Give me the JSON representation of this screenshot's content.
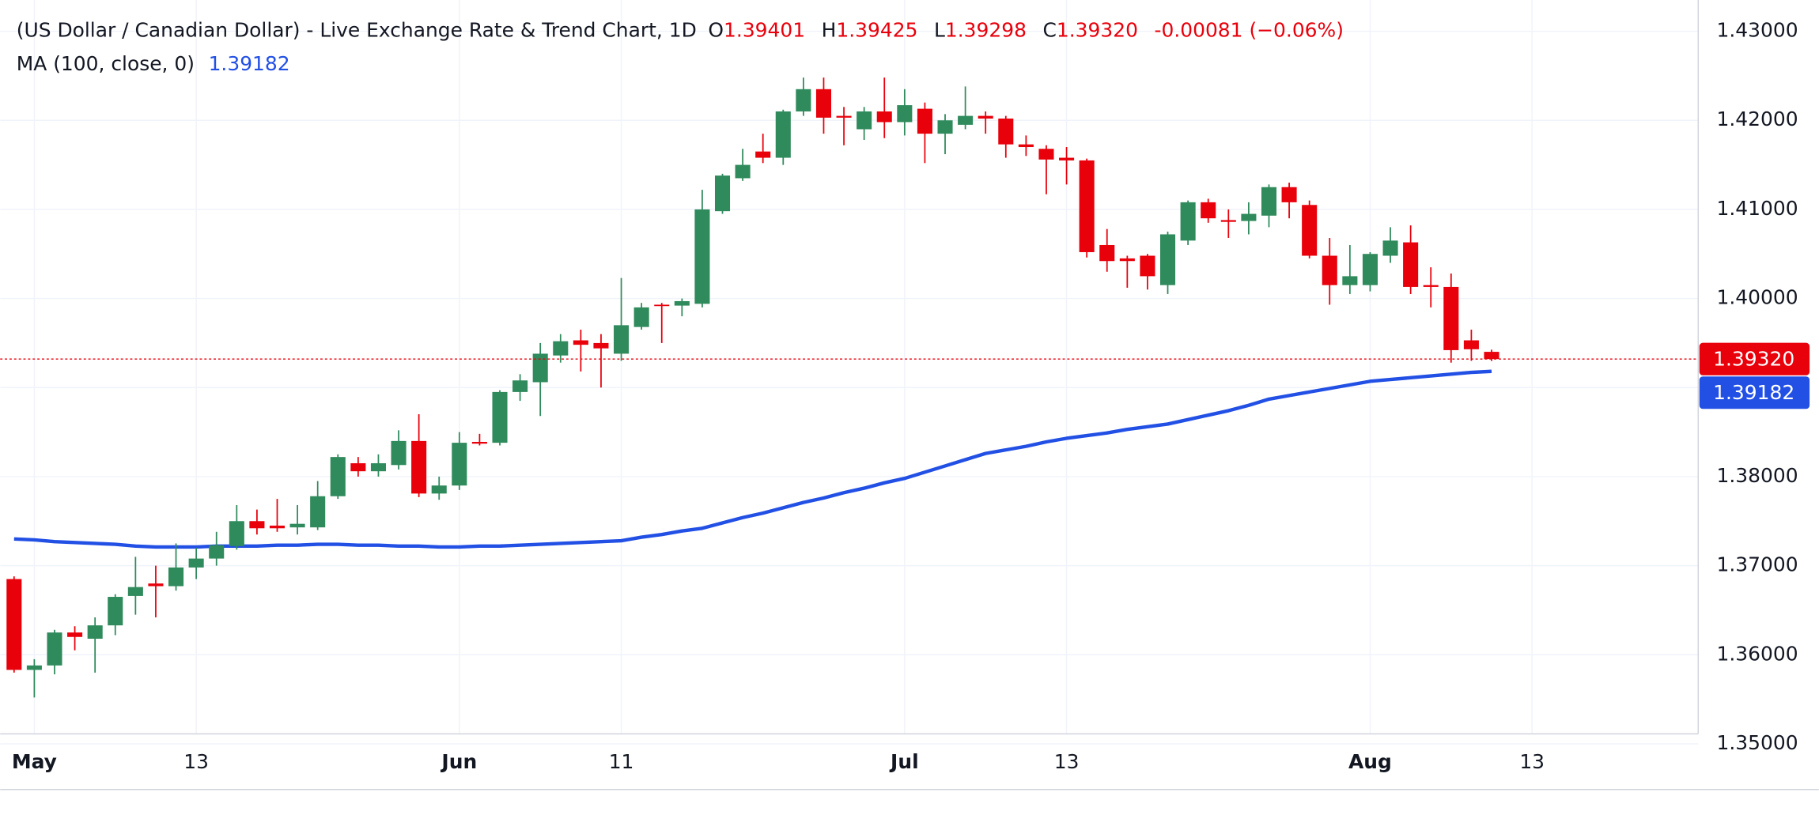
{
  "chart_data": {
    "type": "candlestick",
    "legend": {
      "title": "(US Dollar / Canadian Dollar) - Live Exchange Rate & Trend Chart, 1D",
      "open_prefix": "O",
      "open": "1.39401",
      "high_prefix": "H",
      "high": "1.39425",
      "low_prefix": "L",
      "low": "1.39298",
      "close_prefix": "C",
      "close": "1.39320",
      "change": "-0.00081 (−0.06%)"
    },
    "categories": [
      null,
      "May",
      null,
      null,
      null,
      null,
      null,
      null,
      null,
      "13",
      null,
      null,
      null,
      null,
      null,
      null,
      null,
      null,
      null,
      null,
      null,
      null,
      "Jun",
      null,
      null,
      null,
      null,
      null,
      null,
      null,
      "11",
      null,
      null,
      null,
      null,
      null,
      null,
      null,
      null,
      null,
      null,
      null,
      null,
      null,
      "Jul",
      null,
      null,
      null,
      null,
      null,
      null,
      null,
      "13",
      null,
      null,
      null,
      null,
      null,
      null,
      null,
      null,
      null,
      null,
      null,
      null,
      null,
      null,
      "Aug",
      null,
      null,
      null,
      null,
      null,
      null,
      null,
      "13"
    ],
    "open": [
      1.3685,
      1.3583,
      1.3588,
      1.3625,
      1.3618,
      1.3633,
      1.3666,
      1.368,
      1.3677,
      1.3698,
      1.3708,
      1.3722,
      1.375,
      1.3745,
      1.3743,
      1.3743,
      1.3778,
      1.3815,
      1.3806,
      1.3813,
      1.384,
      1.3781,
      1.379,
      1.3839,
      1.3838,
      1.3895,
      1.3906,
      1.3936,
      1.3953,
      1.395,
      1.3938,
      1.3968,
      1.3993,
      1.3992,
      1.3994,
      1.4098,
      1.4135,
      1.4165,
      1.4158,
      1.421,
      1.4235,
      1.4205,
      1.419,
      1.421,
      1.4198,
      1.4213,
      1.4185,
      1.4195,
      1.4205,
      1.4202,
      1.4173,
      1.4168,
      1.4158,
      1.4155,
      1.406,
      1.4045,
      1.4048,
      1.4015,
      1.4065,
      1.4108,
      1.4088,
      1.4087,
      1.4093,
      1.4125,
      1.4105,
      1.4048,
      1.4015,
      1.4015,
      1.4048,
      1.4063,
      1.4015,
      1.4013,
      1.3953,
      1.39401,
      null,
      null
    ],
    "high": [
      1.3688,
      1.3595,
      1.3628,
      1.3632,
      1.3642,
      1.3668,
      1.371,
      1.37,
      1.3725,
      1.372,
      1.3738,
      1.3768,
      1.3763,
      1.3775,
      1.3768,
      1.3795,
      1.3825,
      1.3822,
      1.3825,
      1.3852,
      1.387,
      1.38,
      1.385,
      1.3848,
      1.3897,
      1.3915,
      1.395,
      1.396,
      1.3965,
      1.396,
      1.4023,
      1.3995,
      1.3995,
      1.4,
      1.4122,
      1.414,
      1.4168,
      1.4185,
      1.4212,
      1.4248,
      1.4248,
      1.4215,
      1.4215,
      1.4248,
      1.4235,
      1.422,
      1.4207,
      1.4238,
      1.421,
      1.4205,
      1.4183,
      1.4172,
      1.417,
      1.4157,
      1.4078,
      1.4048,
      1.405,
      1.4075,
      1.411,
      1.4112,
      1.41,
      1.4108,
      1.4128,
      1.413,
      1.411,
      1.4068,
      1.406,
      1.4052,
      1.408,
      1.4082,
      1.4035,
      1.4028,
      1.3965,
      1.39425,
      null,
      null
    ],
    "low": [
      1.358,
      1.3552,
      1.3578,
      1.3605,
      1.358,
      1.3622,
      1.3645,
      1.3642,
      1.3672,
      1.3685,
      1.37,
      1.3718,
      1.3735,
      1.3738,
      1.3735,
      1.374,
      1.3775,
      1.38,
      1.38,
      1.3808,
      1.3777,
      1.3774,
      1.3785,
      1.3835,
      1.3835,
      1.3885,
      1.3868,
      1.3928,
      1.3918,
      1.39,
      1.393,
      1.3965,
      1.395,
      1.398,
      1.399,
      1.4095,
      1.4132,
      1.4152,
      1.415,
      1.4205,
      1.4185,
      1.4172,
      1.4178,
      1.418,
      1.4183,
      1.4152,
      1.4162,
      1.419,
      1.4185,
      1.4158,
      1.416,
      1.4117,
      1.4128,
      1.4046,
      1.403,
      1.4012,
      1.401,
      1.4005,
      1.406,
      1.4085,
      1.4068,
      1.4072,
      1.408,
      1.409,
      1.4045,
      1.3993,
      1.4005,
      1.4008,
      1.404,
      1.4005,
      1.399,
      1.3928,
      1.393,
      1.39298,
      null,
      null
    ],
    "close": [
      1.3583,
      1.3588,
      1.3625,
      1.362,
      1.3633,
      1.3665,
      1.3676,
      1.3677,
      1.3698,
      1.3708,
      1.3723,
      1.375,
      1.3742,
      1.3742,
      1.3747,
      1.3778,
      1.3822,
      1.3806,
      1.3815,
      1.384,
      1.3781,
      1.379,
      1.3838,
      1.3837,
      1.3895,
      1.3908,
      1.3938,
      1.3952,
      1.3948,
      1.3944,
      1.397,
      1.399,
      1.3992,
      1.3997,
      1.41,
      1.4138,
      1.415,
      1.4158,
      1.421,
      1.4235,
      1.4203,
      1.4203,
      1.421,
      1.4198,
      1.4217,
      1.4185,
      1.42,
      1.4205,
      1.4202,
      1.4173,
      1.417,
      1.4156,
      1.4155,
      1.4052,
      1.4042,
      1.4042,
      1.4025,
      1.4072,
      1.4108,
      1.409,
      1.4086,
      1.4095,
      1.4125,
      1.4108,
      1.4048,
      1.4015,
      1.4025,
      1.405,
      1.4065,
      1.4013,
      1.4013,
      1.3942,
      1.3943,
      1.3932,
      null,
      null
    ],
    "up_color": "#2f8a5c",
    "down_color": "#e8000b",
    "last_price_label": "1.39320",
    "ma": {
      "name": "MA (100, close, 0)",
      "color": "#2250e5",
      "value_label": "1.39182",
      "values": [
        1.373,
        1.3729,
        1.3727,
        1.3726,
        1.3725,
        1.3724,
        1.3722,
        1.3721,
        1.3721,
        1.3721,
        1.3722,
        1.3722,
        1.3722,
        1.3723,
        1.3723,
        1.3724,
        1.3724,
        1.3723,
        1.3723,
        1.3722,
        1.3722,
        1.3721,
        1.3721,
        1.3722,
        1.3722,
        1.3723,
        1.3724,
        1.3725,
        1.3726,
        1.3727,
        1.3728,
        1.3732,
        1.3735,
        1.3739,
        1.3742,
        1.3748,
        1.3754,
        1.3759,
        1.3765,
        1.3771,
        1.3776,
        1.3782,
        1.3787,
        1.3793,
        1.3798,
        1.3805,
        1.3812,
        1.3819,
        1.3826,
        1.383,
        1.3834,
        1.3839,
        1.3843,
        1.3846,
        1.3849,
        1.3853,
        1.3856,
        1.3859,
        1.3864,
        1.3869,
        1.3874,
        1.388,
        1.3887,
        1.3891,
        1.3895,
        1.3899,
        1.3903,
        1.3907,
        1.3909,
        1.3911,
        1.3913,
        1.3915,
        1.3917,
        1.39182,
        null,
        null
      ]
    },
    "ylim": [
      1.35112,
      1.43351
    ],
    "yticks": [
      {
        "value": 1.35,
        "label": "1.35000"
      },
      {
        "value": 1.36,
        "label": "1.36000"
      },
      {
        "value": 1.37,
        "label": "1.37000"
      },
      {
        "value": 1.38,
        "label": "1.38000"
      },
      {
        "value": 1.39,
        "label": "1.39000"
      },
      {
        "value": 1.4,
        "label": "1.40000"
      },
      {
        "value": 1.41,
        "label": "1.41000"
      },
      {
        "value": 1.42,
        "label": "1.42000"
      },
      {
        "value": 1.43,
        "label": "1.43000"
      }
    ],
    "grid": true
  }
}
